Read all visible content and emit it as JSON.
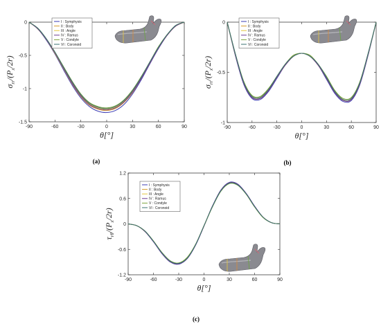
{
  "colors": {
    "series": [
      "#3b3bb3",
      "#d59a2a",
      "#e3c53a",
      "#6b3a8f",
      "#7aa33a",
      "#3a7070"
    ],
    "model_bone": "#8a8a90",
    "model_dark": "#5a5a62"
  },
  "chart_data": [
    {
      "id": "a",
      "type": "line",
      "caption": "(a)",
      "ylabel_main": "σ",
      "ylabel_sub": "rr",
      "ylabel_rest": "/(P",
      "ylabel_sub2": "x",
      "ylabel_end": "/2r)",
      "xlabel": "θ[°]",
      "xlim": [
        -90,
        90
      ],
      "ylim": [
        -1.5,
        0
      ],
      "xticks": [
        -90,
        -60,
        -30,
        0,
        30,
        60,
        90
      ],
      "xtick_labels": [
        "-90",
        "-60",
        "-30",
        "0",
        "30",
        "60",
        "90"
      ],
      "yticks": [
        0,
        -0.5,
        -1,
        -1.5
      ],
      "ytick_labels": [
        "0",
        "-0.5",
        "-1",
        "-1.5"
      ],
      "legend_position": "top-left",
      "legend": [
        "I : Symphysis",
        "II : Body",
        "III : Angle",
        "IV : Ramus",
        "V : Condyle",
        "VI : Coronoid"
      ],
      "x": [
        -90,
        -80,
        -70,
        -60,
        -50,
        -40,
        -30,
        -20,
        -10,
        0,
        10,
        20,
        30,
        40,
        50,
        60,
        70,
        80,
        90
      ],
      "series": [
        {
          "name": "I : Symphysis",
          "values": [
            0,
            -0.1,
            -0.27,
            -0.48,
            -0.72,
            -0.95,
            -1.14,
            -1.27,
            -1.34,
            -1.36,
            -1.33,
            -1.24,
            -1.08,
            -0.87,
            -0.63,
            -0.4,
            -0.2,
            -0.06,
            0
          ]
        },
        {
          "name": "II : Body",
          "values": [
            0,
            -0.1,
            -0.26,
            -0.47,
            -0.7,
            -0.93,
            -1.12,
            -1.25,
            -1.31,
            -1.33,
            -1.3,
            -1.21,
            -1.06,
            -0.85,
            -0.62,
            -0.39,
            -0.2,
            -0.06,
            0
          ]
        },
        {
          "name": "III : Angle",
          "values": [
            0,
            -0.1,
            -0.26,
            -0.46,
            -0.69,
            -0.91,
            -1.1,
            -1.23,
            -1.29,
            -1.31,
            -1.28,
            -1.19,
            -1.04,
            -0.84,
            -0.61,
            -0.38,
            -0.19,
            -0.06,
            0
          ]
        },
        {
          "name": "IV : Ramus",
          "values": [
            0,
            -0.1,
            -0.26,
            -0.46,
            -0.69,
            -0.92,
            -1.11,
            -1.24,
            -1.3,
            -1.32,
            -1.29,
            -1.2,
            -1.05,
            -0.85,
            -0.62,
            -0.39,
            -0.2,
            -0.06,
            0
          ]
        },
        {
          "name": "V : Condyle",
          "values": [
            0,
            -0.09,
            -0.25,
            -0.45,
            -0.67,
            -0.89,
            -1.08,
            -1.21,
            -1.27,
            -1.29,
            -1.26,
            -1.17,
            -1.02,
            -0.82,
            -0.6,
            -0.37,
            -0.19,
            -0.05,
            0
          ]
        },
        {
          "name": "VI : Coronoid",
          "values": [
            0,
            -0.09,
            -0.25,
            -0.45,
            -0.68,
            -0.9,
            -1.09,
            -1.22,
            -1.28,
            -1.3,
            -1.27,
            -1.18,
            -1.03,
            -0.83,
            -0.6,
            -0.38,
            -0.19,
            -0.05,
            0
          ]
        }
      ]
    },
    {
      "id": "b",
      "type": "line",
      "caption": "(b)",
      "ylabel_main": "σ",
      "ylabel_sub": "rr",
      "ylabel_rest": "/(P",
      "ylabel_sub2": "x",
      "ylabel_end": "/2r)",
      "xlabel": "θ[°]",
      "xlim": [
        -90,
        90
      ],
      "ylim": [
        -1,
        0
      ],
      "xticks": [
        -90,
        -60,
        -30,
        0,
        30,
        60,
        90
      ],
      "xtick_labels": [
        "-90",
        "-60",
        "-30",
        "0",
        "30",
        "60",
        "90"
      ],
      "yticks": [
        0,
        -0.5,
        -1
      ],
      "ytick_labels": [
        "0",
        "-0.5",
        "-1"
      ],
      "legend_position": "top-left",
      "legend": [
        "I : Symphysis",
        "II : Body",
        "III : Angle",
        "IV : Ramus",
        "V : Condyle",
        "VI : Coronoid"
      ],
      "x": [
        -90,
        -80,
        -70,
        -60,
        -50,
        -40,
        -30,
        -20,
        -10,
        0,
        10,
        20,
        30,
        40,
        50,
        60,
        70,
        80,
        90
      ],
      "series": [
        {
          "name": "I : Symphysis",
          "values": [
            0,
            -0.34,
            -0.62,
            -0.76,
            -0.77,
            -0.69,
            -0.56,
            -0.43,
            -0.34,
            -0.31,
            -0.34,
            -0.43,
            -0.57,
            -0.71,
            -0.79,
            -0.78,
            -0.63,
            -0.34,
            0
          ]
        },
        {
          "name": "II : Body",
          "values": [
            0,
            -0.33,
            -0.61,
            -0.75,
            -0.76,
            -0.68,
            -0.55,
            -0.43,
            -0.34,
            -0.31,
            -0.34,
            -0.43,
            -0.56,
            -0.7,
            -0.78,
            -0.77,
            -0.62,
            -0.33,
            0
          ]
        },
        {
          "name": "III : Angle",
          "values": [
            0,
            -0.33,
            -0.6,
            -0.74,
            -0.75,
            -0.67,
            -0.55,
            -0.42,
            -0.34,
            -0.31,
            -0.34,
            -0.42,
            -0.55,
            -0.69,
            -0.77,
            -0.76,
            -0.61,
            -0.33,
            0
          ]
        },
        {
          "name": "IV : Ramus",
          "values": [
            0,
            -0.33,
            -0.61,
            -0.75,
            -0.76,
            -0.68,
            -0.55,
            -0.43,
            -0.34,
            -0.31,
            -0.34,
            -0.43,
            -0.56,
            -0.7,
            -0.78,
            -0.77,
            -0.62,
            -0.33,
            0
          ]
        },
        {
          "name": "V : Condyle",
          "values": [
            0,
            -0.32,
            -0.59,
            -0.73,
            -0.74,
            -0.66,
            -0.54,
            -0.42,
            -0.33,
            -0.31,
            -0.33,
            -0.42,
            -0.54,
            -0.68,
            -0.76,
            -0.75,
            -0.6,
            -0.32,
            0
          ]
        },
        {
          "name": "VI : Coronoid",
          "values": [
            0,
            -0.32,
            -0.6,
            -0.74,
            -0.75,
            -0.67,
            -0.54,
            -0.42,
            -0.34,
            -0.31,
            -0.34,
            -0.42,
            -0.55,
            -0.69,
            -0.77,
            -0.76,
            -0.61,
            -0.32,
            0
          ]
        }
      ]
    },
    {
      "id": "c",
      "type": "line",
      "caption": "(c)",
      "ylabel_main": "τ",
      "ylabel_sub": "rθ",
      "ylabel_rest": "/(P",
      "ylabel_sub2": "x",
      "ylabel_end": "/2r)",
      "xlabel": "θ[°]",
      "xlim": [
        -90,
        90
      ],
      "ylim": [
        -1.2,
        1.2
      ],
      "xticks": [
        -90,
        -60,
        -30,
        0,
        30,
        60,
        90
      ],
      "xtick_labels": [
        "-90",
        "-60",
        "-30",
        "0",
        "30",
        "60",
        "90"
      ],
      "yticks": [
        1.2,
        0.6,
        0,
        -0.6,
        -1.2
      ],
      "ytick_labels": [
        "1.2",
        "0.6",
        "0",
        "-0.6",
        "-1.2"
      ],
      "legend_position": "top-left",
      "legend": [
        "I : Symphysis",
        "II : Body",
        "III : Angle",
        "IV : Ramus",
        "V : Condyle",
        "VI : Coronoid"
      ],
      "x": [
        -90,
        -80,
        -70,
        -60,
        -50,
        -40,
        -30,
        -20,
        -10,
        0,
        10,
        20,
        30,
        40,
        50,
        60,
        70,
        80,
        90
      ],
      "series": [
        {
          "name": "I : Symphysis",
          "values": [
            0,
            -0.04,
            -0.18,
            -0.42,
            -0.7,
            -0.9,
            -0.95,
            -0.82,
            -0.5,
            -0.05,
            0.42,
            0.8,
            0.98,
            0.94,
            0.72,
            0.42,
            0.16,
            0.03,
            0
          ]
        },
        {
          "name": "II : Body",
          "values": [
            0,
            -0.04,
            -0.18,
            -0.41,
            -0.69,
            -0.89,
            -0.94,
            -0.81,
            -0.49,
            -0.05,
            0.41,
            0.79,
            0.97,
            0.93,
            0.71,
            0.41,
            0.16,
            0.03,
            0
          ]
        },
        {
          "name": "III : Angle",
          "values": [
            0,
            -0.04,
            -0.17,
            -0.41,
            -0.68,
            -0.88,
            -0.93,
            -0.8,
            -0.49,
            -0.04,
            0.41,
            0.78,
            0.96,
            0.92,
            0.71,
            0.41,
            0.16,
            0.03,
            0
          ]
        },
        {
          "name": "IV : Ramus",
          "values": [
            0,
            -0.04,
            -0.18,
            -0.42,
            -0.69,
            -0.89,
            -0.94,
            -0.82,
            -0.5,
            -0.05,
            0.42,
            0.79,
            0.97,
            0.93,
            0.72,
            0.42,
            0.16,
            0.03,
            0
          ]
        },
        {
          "name": "V : Condyle",
          "values": [
            0,
            -0.04,
            -0.17,
            -0.4,
            -0.67,
            -0.87,
            -0.92,
            -0.79,
            -0.48,
            -0.04,
            0.4,
            0.77,
            0.95,
            0.91,
            0.7,
            0.4,
            0.15,
            0.03,
            0
          ]
        },
        {
          "name": "VI : Coronoid",
          "values": [
            0,
            -0.04,
            -0.17,
            -0.41,
            -0.68,
            -0.88,
            -0.93,
            -0.81,
            -0.49,
            -0.04,
            0.41,
            0.78,
            0.96,
            0.92,
            0.71,
            0.41,
            0.16,
            0.03,
            0
          ]
        }
      ]
    }
  ]
}
